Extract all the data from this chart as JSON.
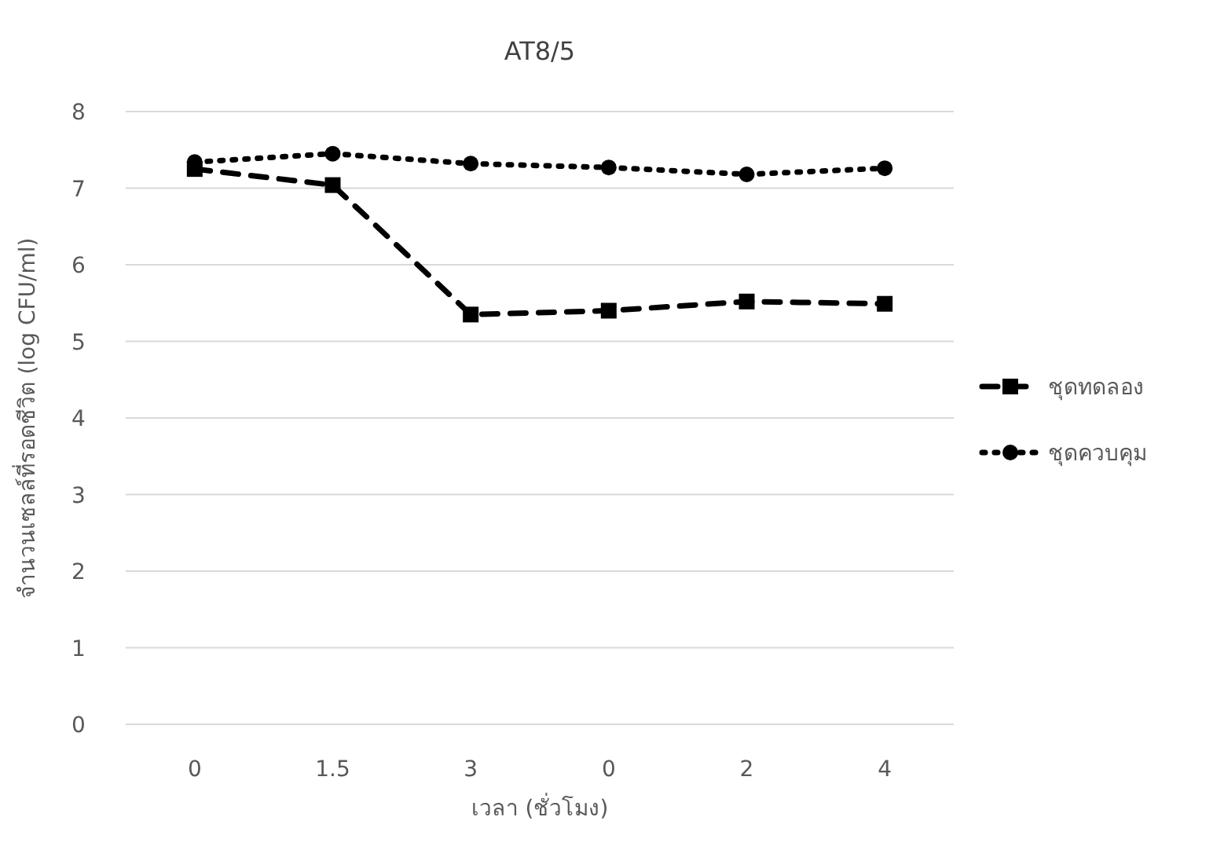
{
  "chart_data": {
    "type": "line",
    "title": "AT8/5",
    "xlabel": "เวลา (ชั่วโมง)",
    "ylabel": "จำนวนเซลล์ที่รอดชีวิต (log CFU/ml)",
    "categories": [
      "0",
      "1.5",
      "3",
      "0",
      "2",
      "4"
    ],
    "series": [
      {
        "name": "ชุดทดลอง",
        "color": "#000000",
        "marker": "square",
        "line_style": "dashed",
        "values": [
          7.25,
          7.04,
          5.35,
          5.4,
          5.52,
          5.49
        ]
      },
      {
        "name": "ชุดควบคุม",
        "color": "#000000",
        "marker": "circle",
        "line_style": "dotted",
        "values": [
          7.34,
          7.45,
          7.32,
          7.27,
          7.18,
          7.26
        ]
      }
    ],
    "ylim": [
      0,
      8
    ],
    "yticks": [
      0,
      1,
      2,
      3,
      4,
      5,
      6,
      7,
      8
    ],
    "grid": "y",
    "legend": "right"
  }
}
